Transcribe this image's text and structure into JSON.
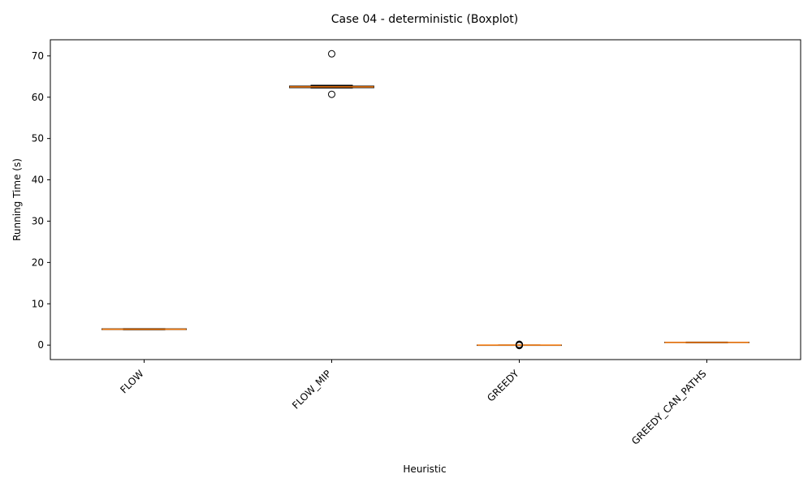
{
  "chart_data": {
    "type": "boxplot",
    "title": "Case 04 - deterministic (Boxplot)",
    "xlabel": "Heuristic",
    "ylabel": "Running Time (s)",
    "ylim": [
      -3.5,
      73.9
    ],
    "yticks": [
      0,
      10,
      20,
      30,
      40,
      50,
      60,
      70
    ],
    "grid": false,
    "categories": [
      "FLOW",
      "FLOW_MIP",
      "GREEDY",
      "GREEDY_CAN_PATHS"
    ],
    "boxes": [
      {
        "category": "FLOW",
        "whisker_low": 3.7,
        "q1": 3.75,
        "median": 3.85,
        "q3": 3.95,
        "whisker_high": 4.0,
        "outliers": []
      },
      {
        "category": "FLOW_MIP",
        "whisker_low": 62.2,
        "q1": 62.3,
        "median": 62.5,
        "q3": 62.7,
        "whisker_high": 62.9,
        "outliers": [
          70.5,
          60.7
        ]
      },
      {
        "category": "GREEDY",
        "whisker_low": -0.05,
        "q1": -0.02,
        "median": 0.0,
        "q3": 0.02,
        "whisker_high": 0.05,
        "outliers": [
          0.0,
          0.1,
          0.2,
          -0.1
        ]
      },
      {
        "category": "GREEDY_CAN_PATHS",
        "whisker_low": 0.55,
        "q1": 0.6,
        "median": 0.65,
        "q3": 0.7,
        "whisker_high": 0.75,
        "outliers": []
      }
    ],
    "colors": {
      "box": "#000000",
      "median": "#ff7f0e",
      "outlier": "#000000"
    }
  }
}
